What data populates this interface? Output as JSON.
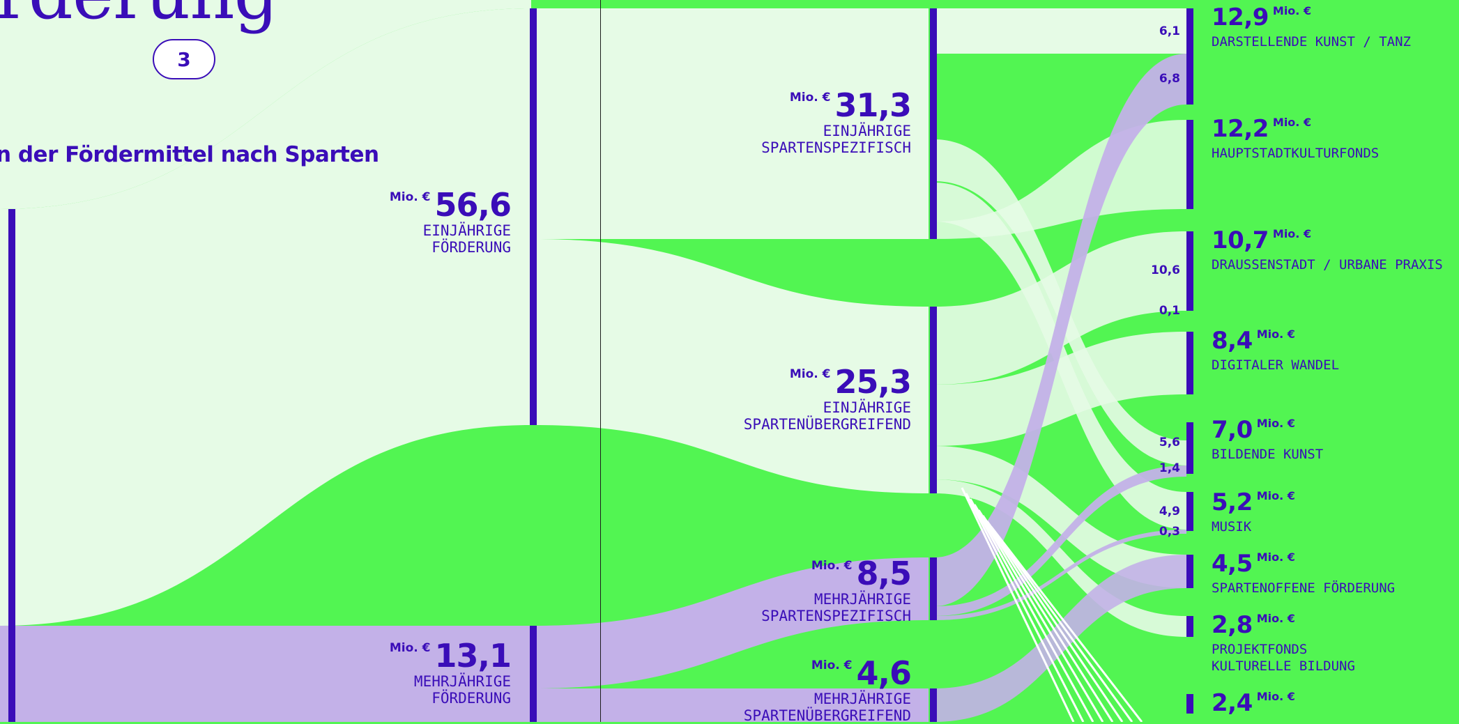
{
  "header": {
    "title_fragment": "rderung",
    "page_number": "3",
    "subtitle_fragment": "n der Fördermittel nach Sparten"
  },
  "colors": {
    "background": "#52f552",
    "accent": "#3a0db8",
    "light_flow": "#e6fbe6",
    "lavender_flow": "#c3b1e8"
  },
  "unit": "Mio. €",
  "chart_data": {
    "type": "sankey",
    "unit": "Mio. €",
    "nodes_level1": [
      {
        "id": "ein",
        "value": "56,6",
        "label": [
          "EINJÄHRIGE",
          "FÖRDERUNG"
        ]
      },
      {
        "id": "mehr",
        "value": "13,1",
        "label": [
          "MEHRJÄHRIGE",
          "FÖRDERUNG"
        ]
      }
    ],
    "nodes_level2": [
      {
        "id": "ein_spez",
        "value": "31,3",
        "label": [
          "EINJÄHRIGE",
          "SPARTENSPEZIFISCH"
        ]
      },
      {
        "id": "ein_ueber",
        "value": "25,3",
        "label": [
          "EINJÄHRIGE",
          "SPARTENÜBERGREIFEND"
        ]
      },
      {
        "id": "mehr_spez",
        "value": "8,5",
        "label": [
          "MEHRJÄHRIGE",
          "SPARTENSPEZIFISCH"
        ]
      },
      {
        "id": "mehr_ueber",
        "value": "4,6",
        "label": [
          "MEHRJÄHRIGE",
          "SPARTENÜBERGREIFEND"
        ]
      }
    ],
    "nodes_level3": [
      {
        "id": "darst",
        "value": "12,9",
        "label": [
          "DARSTELLENDE KUNST / TANZ"
        ]
      },
      {
        "id": "haupt",
        "value": "12,2",
        "label": [
          "HAUPTSTADTKULTURFONDS"
        ]
      },
      {
        "id": "draussen",
        "value": "10,7",
        "label": [
          "DRAUSSENSTADT / URBANE PRAXIS"
        ]
      },
      {
        "id": "digital",
        "value": "8,4",
        "label": [
          "DIGITALER WANDEL"
        ]
      },
      {
        "id": "bildende",
        "value": "7,0",
        "label": [
          "BILDENDE KUNST"
        ]
      },
      {
        "id": "musik",
        "value": "5,2",
        "label": [
          "MUSIK"
        ]
      },
      {
        "id": "spartenoffen",
        "value": "4,5",
        "label": [
          "SPARTENOFFENE FÖRDERUNG"
        ]
      },
      {
        "id": "projektfonds",
        "value": "2,8",
        "label": [
          "PROJEKTFONDS",
          "KULTURELLE BILDUNG"
        ]
      },
      {
        "id": "letzte",
        "value": "2,4",
        "label": []
      }
    ],
    "flow_labels": [
      {
        "text": "6,1",
        "target": "darst",
        "source": "ein_spez"
      },
      {
        "text": "6,8",
        "target": "darst",
        "source": "mehr_spez"
      },
      {
        "text": "10,6",
        "target": "draussen",
        "source": "ein_ueber"
      },
      {
        "text": "0,1",
        "target": "draussen",
        "source": "mehr_ueber"
      },
      {
        "text": "5,6",
        "target": "bildende",
        "source": "ein_spez"
      },
      {
        "text": "1,4",
        "target": "bildende",
        "source": "mehr_spez"
      },
      {
        "text": "4,9",
        "target": "musik",
        "source": "ein_spez"
      },
      {
        "text": "0,3",
        "target": "musik",
        "source": "mehr_spez"
      }
    ]
  }
}
